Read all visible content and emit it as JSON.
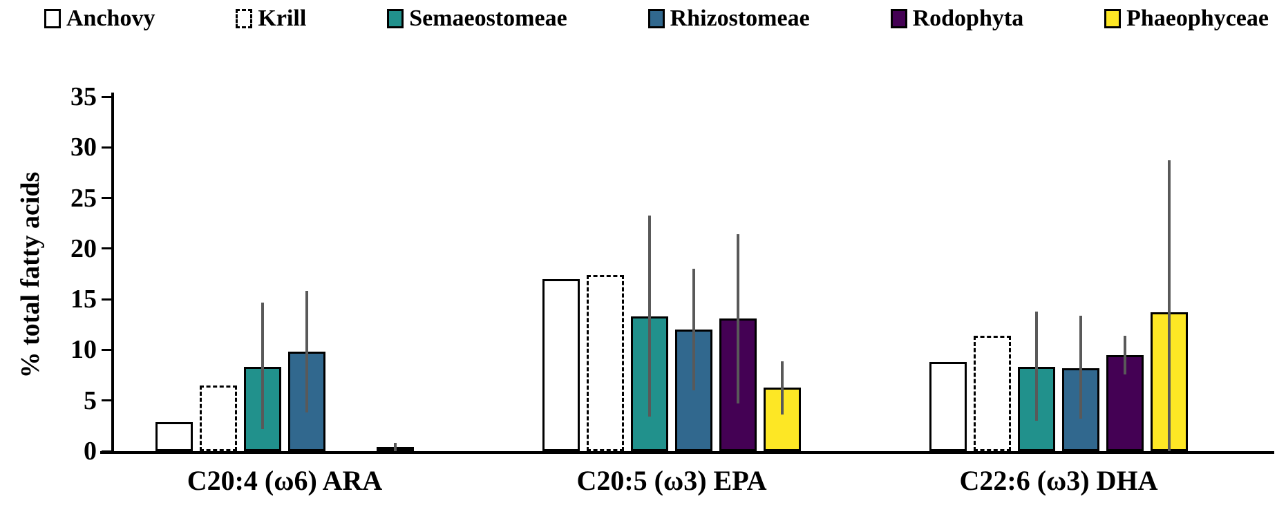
{
  "chart_data": {
    "type": "bar",
    "title": "",
    "xlabel": "",
    "ylabel": "% total fatty acids",
    "ylim": [
      0,
      35
    ],
    "yticks": [
      0,
      5,
      10,
      15,
      20,
      25,
      30,
      35
    ],
    "grid": false,
    "legend_position": "top",
    "error_bar_color": "#595959",
    "categories": [
      "C20:4 (ω6) ARA",
      "C20:5 (ω3) EPA",
      "C22:6 (ω3) DHA"
    ],
    "series": [
      {
        "name": "Anchovy",
        "fill": "#ffffff",
        "border_style": "solid",
        "values": [
          2.9,
          17.0,
          8.8
        ],
        "error_low": [
          null,
          null,
          null
        ],
        "error_high": [
          null,
          null,
          null
        ]
      },
      {
        "name": "Krill",
        "fill": "#ffffff",
        "border_style": "dashed",
        "values": [
          6.5,
          17.4,
          11.4
        ],
        "error_low": [
          null,
          null,
          null
        ],
        "error_high": [
          null,
          null,
          null
        ]
      },
      {
        "name": "Semaeostomeae",
        "fill": "#21918c",
        "border_style": "solid",
        "values": [
          8.3,
          13.3,
          8.3
        ],
        "error_low": [
          2.2,
          3.4,
          3.0
        ],
        "error_high": [
          14.7,
          23.3,
          13.8
        ]
      },
      {
        "name": "Rhizostomeae",
        "fill": "#31688e",
        "border_style": "solid",
        "values": [
          9.8,
          12.0,
          8.2
        ],
        "error_low": [
          3.8,
          6.0,
          3.2
        ],
        "error_high": [
          15.8,
          18.0,
          13.4
        ]
      },
      {
        "name": "Rodophyta",
        "fill": "#440154",
        "border_style": "solid",
        "values": [
          null,
          13.1,
          9.5
        ],
        "error_low": [
          null,
          4.7,
          7.6
        ],
        "error_high": [
          null,
          21.4,
          11.4
        ]
      },
      {
        "name": "Phaeophyceae",
        "fill": "#fde725",
        "border_style": "solid",
        "values": [
          0.35,
          6.3,
          13.7
        ],
        "error_low": [
          0.0,
          3.6,
          0.0
        ],
        "error_high": [
          0.8,
          8.9,
          28.7
        ]
      }
    ]
  }
}
